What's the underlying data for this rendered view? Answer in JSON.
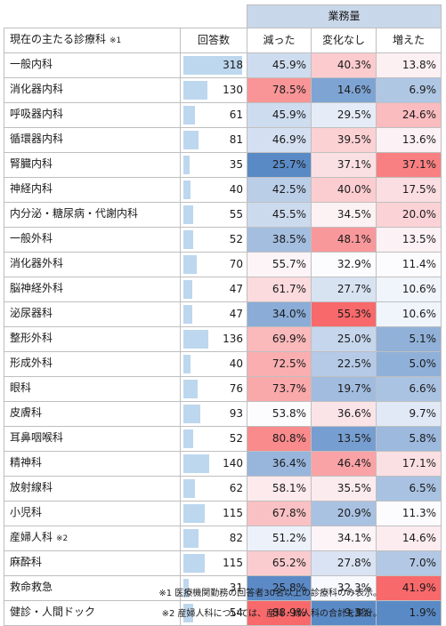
{
  "header": {
    "group_label": "業務量",
    "col_dept": "現在の主たる診療科",
    "col_dept_note": "※1",
    "col_count": "回答数",
    "col_decreased": "減った",
    "col_unchanged": "変化なし",
    "col_increased": "増えた"
  },
  "max_count": 318,
  "rows": [
    {
      "dept": "一般内科",
      "note": "",
      "count": 318,
      "decreased": "45.9%",
      "unchanged": "40.3%",
      "increased": "13.8%"
    },
    {
      "dept": "消化器内科",
      "note": "",
      "count": 130,
      "decreased": "78.5%",
      "unchanged": "14.6%",
      "increased": "6.9%"
    },
    {
      "dept": "呼吸器内科",
      "note": "",
      "count": 61,
      "decreased": "45.9%",
      "unchanged": "29.5%",
      "increased": "24.6%"
    },
    {
      "dept": "循環器内科",
      "note": "",
      "count": 81,
      "decreased": "46.9%",
      "unchanged": "39.5%",
      "increased": "13.6%"
    },
    {
      "dept": "腎臓内科",
      "note": "",
      "count": 35,
      "decreased": "25.7%",
      "unchanged": "37.1%",
      "increased": "37.1%"
    },
    {
      "dept": "神経内科",
      "note": "",
      "count": 40,
      "decreased": "42.5%",
      "unchanged": "40.0%",
      "increased": "17.5%"
    },
    {
      "dept": "内分泌・糖尿病・代謝内科",
      "note": "",
      "count": 55,
      "decreased": "45.5%",
      "unchanged": "34.5%",
      "increased": "20.0%"
    },
    {
      "dept": "一般外科",
      "note": "",
      "count": 52,
      "decreased": "38.5%",
      "unchanged": "48.1%",
      "increased": "13.5%"
    },
    {
      "dept": "消化器外科",
      "note": "",
      "count": 70,
      "decreased": "55.7%",
      "unchanged": "32.9%",
      "increased": "11.4%"
    },
    {
      "dept": "脳神経外科",
      "note": "",
      "count": 47,
      "decreased": "61.7%",
      "unchanged": "27.7%",
      "increased": "10.6%"
    },
    {
      "dept": "泌尿器科",
      "note": "",
      "count": 47,
      "decreased": "34.0%",
      "unchanged": "55.3%",
      "increased": "10.6%"
    },
    {
      "dept": "整形外科",
      "note": "",
      "count": 136,
      "decreased": "69.9%",
      "unchanged": "25.0%",
      "increased": "5.1%"
    },
    {
      "dept": "形成外科",
      "note": "",
      "count": 40,
      "decreased": "72.5%",
      "unchanged": "22.5%",
      "increased": "5.0%"
    },
    {
      "dept": "眼科",
      "note": "",
      "count": 76,
      "decreased": "73.7%",
      "unchanged": "19.7%",
      "increased": "6.6%"
    },
    {
      "dept": "皮膚科",
      "note": "",
      "count": 93,
      "decreased": "53.8%",
      "unchanged": "36.6%",
      "increased": "9.7%"
    },
    {
      "dept": "耳鼻咽喉科",
      "note": "",
      "count": 52,
      "decreased": "80.8%",
      "unchanged": "13.5%",
      "increased": "5.8%"
    },
    {
      "dept": "精神科",
      "note": "",
      "count": 140,
      "decreased": "36.4%",
      "unchanged": "46.4%",
      "increased": "17.1%"
    },
    {
      "dept": "放射線科",
      "note": "",
      "count": 62,
      "decreased": "58.1%",
      "unchanged": "35.5%",
      "increased": "6.5%"
    },
    {
      "dept": "小児科",
      "note": "",
      "count": 115,
      "decreased": "67.8%",
      "unchanged": "20.9%",
      "increased": "11.3%"
    },
    {
      "dept": "産婦人科",
      "note": "※2",
      "count": 82,
      "decreased": "51.2%",
      "unchanged": "34.1%",
      "increased": "14.6%"
    },
    {
      "dept": "麻酔科",
      "note": "",
      "count": 115,
      "decreased": "65.2%",
      "unchanged": "27.8%",
      "increased": "7.0%"
    },
    {
      "dept": "救命救急",
      "note": "",
      "count": 31,
      "decreased": "25.8%",
      "unchanged": "32.3%",
      "increased": "41.9%"
    },
    {
      "dept": "健診・人間ドック",
      "note": "",
      "count": 54,
      "decreased": "88.9%",
      "unchanged": "9.3%",
      "increased": "1.9%"
    }
  ],
  "notes": {
    "n1": "※1 医療機関勤務の回答者30名以上の診療科のみ表示。",
    "n2": "※2 産婦人科については、産科・婦人科の合計を集計。"
  },
  "colors": {
    "header_bg": "#c9d7ea",
    "bar": "#bdd7ee",
    "high_red": "#f8696b",
    "low_blue": "#5a8ac6",
    "neutral": "#fcfcff"
  }
}
